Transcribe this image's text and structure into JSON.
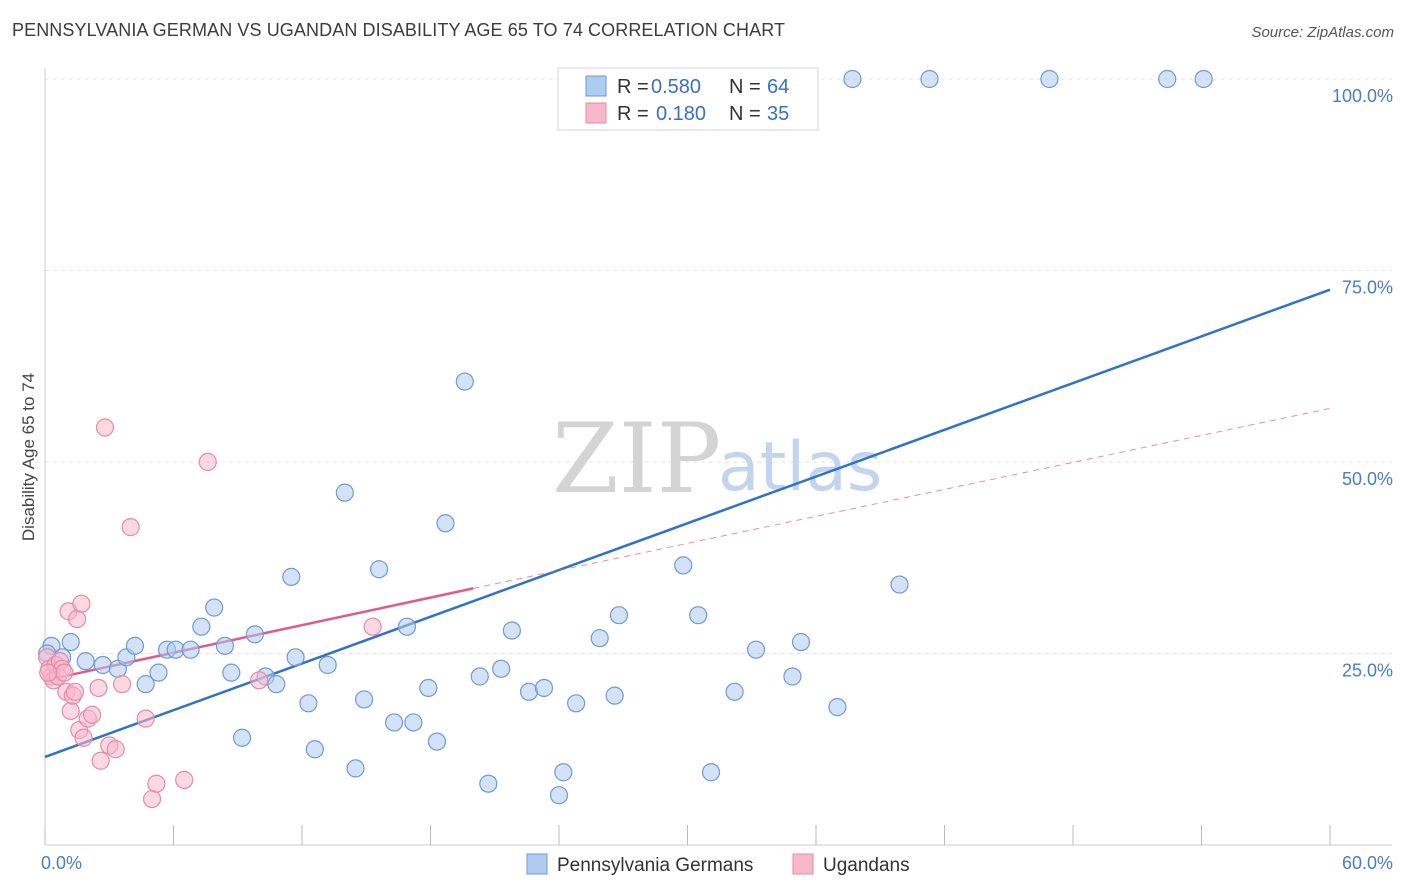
{
  "title": "PENNSYLVANIA GERMAN VS UGANDAN DISABILITY AGE 65 TO 74 CORRELATION CHART",
  "source": "Source: ZipAtlas.com",
  "watermark": {
    "zip": "ZIP",
    "atlas": "atlas"
  },
  "colors": {
    "blue_fill": "#aecbf0",
    "blue_stroke": "#6f9ad6",
    "blue_line": "#2f72cc",
    "pink_fill": "#f7b8ca",
    "pink_stroke": "#e78aa7",
    "pink_line": "#e05a8a",
    "label_blue": "#4a7cc9",
    "grid": "#e3e3e3"
  },
  "legend": {
    "row1": {
      "r_label": "R =",
      "r_value": "0.580",
      "n_label": "N =",
      "n_value": "64"
    },
    "row2": {
      "r_label": "R =",
      "r_value": "0.180",
      "n_label": "N =",
      "n_value": "35"
    }
  },
  "chart_data": {
    "type": "scatter",
    "title": "PENNSYLVANIA GERMAN VS UGANDAN DISABILITY AGE 65 TO 74 CORRELATION CHART",
    "xlabel": "",
    "ylabel": "Disability Age 65 to 74",
    "xlim": [
      0,
      60
    ],
    "ylim": [
      0,
      100
    ],
    "x_tick_labels": [
      "0.0%",
      "60.0%"
    ],
    "y_ticks": [
      25,
      50,
      75,
      100
    ],
    "y_tick_labels": [
      "25.0%",
      "50.0%",
      "75.0%",
      "100.0%"
    ],
    "grid": true,
    "legend_position": "top-center",
    "series": [
      {
        "name": "Pennsylvania Germans",
        "color": "#aecbf0",
        "R": 0.58,
        "N": 64,
        "trend": {
          "x": [
            0,
            60
          ],
          "y": [
            11.5,
            72.5
          ],
          "style": "solid"
        },
        "points": [
          [
            0.3,
            26
          ],
          [
            0.8,
            24.5
          ],
          [
            1.2,
            26.5
          ],
          [
            1.9,
            24
          ],
          [
            2.7,
            23.5
          ],
          [
            3.4,
            23
          ],
          [
            3.8,
            24.5
          ],
          [
            4.2,
            26
          ],
          [
            4.7,
            21
          ],
          [
            5.3,
            22.5
          ],
          [
            5.7,
            25.5
          ],
          [
            6.1,
            25.5
          ],
          [
            6.8,
            25.5
          ],
          [
            7.3,
            28.5
          ],
          [
            7.9,
            31
          ],
          [
            8.4,
            26
          ],
          [
            8.7,
            22.5
          ],
          [
            9.2,
            14
          ],
          [
            9.8,
            27.5
          ],
          [
            10.3,
            22
          ],
          [
            10.8,
            21
          ],
          [
            11.5,
            35
          ],
          [
            11.7,
            24.5
          ],
          [
            12.3,
            18.5
          ],
          [
            12.6,
            12.5
          ],
          [
            13.2,
            23.5
          ],
          [
            14.0,
            46
          ],
          [
            14.5,
            10
          ],
          [
            14.9,
            19
          ],
          [
            15.6,
            36
          ],
          [
            16.3,
            16
          ],
          [
            16.9,
            28.5
          ],
          [
            17.2,
            16
          ],
          [
            17.9,
            20.5
          ],
          [
            18.3,
            13.5
          ],
          [
            18.7,
            42
          ],
          [
            19.6,
            60.5
          ],
          [
            20.3,
            22
          ],
          [
            20.7,
            8
          ],
          [
            21.3,
            23
          ],
          [
            21.8,
            28
          ],
          [
            22.6,
            20
          ],
          [
            23.3,
            20.5
          ],
          [
            24.2,
            9.5
          ],
          [
            24.0,
            6.5
          ],
          [
            24.8,
            18.5
          ],
          [
            25.9,
            27
          ],
          [
            26.6,
            19.5
          ],
          [
            26.8,
            30
          ],
          [
            29.8,
            36.5
          ],
          [
            30.5,
            30
          ],
          [
            31.1,
            9.5
          ],
          [
            32.2,
            20
          ],
          [
            33.2,
            25.5
          ],
          [
            34.9,
            22
          ],
          [
            35.3,
            26.5
          ],
          [
            37.0,
            18
          ],
          [
            37.7,
            100
          ],
          [
            39.9,
            34
          ],
          [
            41.3,
            100
          ],
          [
            46.9,
            100
          ],
          [
            52.4,
            100
          ],
          [
            54.1,
            100
          ],
          [
            0.1,
            25
          ]
        ]
      },
      {
        "name": "Ugandans",
        "color": "#f7b8ca",
        "R": 0.18,
        "N": 35,
        "trend": {
          "x": [
            0,
            20
          ],
          "y": [
            21.5,
            33.5
          ],
          "style": "solid",
          "extended": {
            "x": [
              20,
              60
            ],
            "y": [
              33.5,
              57
            ]
          }
        },
        "points": [
          [
            0.1,
            24.5
          ],
          [
            0.2,
            23
          ],
          [
            0.3,
            22
          ],
          [
            0.4,
            21.5
          ],
          [
            0.5,
            23.5
          ],
          [
            0.6,
            22
          ],
          [
            0.7,
            24
          ],
          [
            0.8,
            23
          ],
          [
            0.9,
            22.5
          ],
          [
            1.0,
            20
          ],
          [
            1.1,
            30.5
          ],
          [
            1.2,
            17.5
          ],
          [
            1.3,
            19.5
          ],
          [
            1.4,
            20
          ],
          [
            1.5,
            29.5
          ],
          [
            1.6,
            15
          ],
          [
            1.7,
            31.5
          ],
          [
            1.8,
            14
          ],
          [
            2.0,
            16.5
          ],
          [
            2.2,
            17
          ],
          [
            2.5,
            20.5
          ],
          [
            2.6,
            11
          ],
          [
            2.8,
            54.5
          ],
          [
            3.0,
            13
          ],
          [
            3.3,
            12.5
          ],
          [
            3.6,
            21
          ],
          [
            4.0,
            41.5
          ],
          [
            4.7,
            16.5
          ],
          [
            5.0,
            6
          ],
          [
            5.2,
            8
          ],
          [
            6.5,
            8.5
          ],
          [
            7.6,
            50
          ],
          [
            10.0,
            21.5
          ],
          [
            15.3,
            28.5
          ],
          [
            0.15,
            22.5
          ]
        ]
      }
    ]
  }
}
